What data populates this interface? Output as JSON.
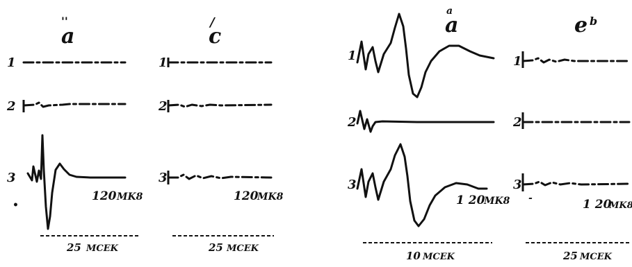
{
  "panels": [
    {
      "id": "a",
      "letter": "a",
      "traces": [
        {
          "label": "1"
        },
        {
          "label": "2"
        },
        {
          "label": "3"
        }
      ],
      "calibration": "120",
      "timebase": "25"
    },
    {
      "id": "b",
      "letter": "c",
      "traces": [
        {
          "label": "1"
        },
        {
          "label": "2"
        },
        {
          "label": "3"
        }
      ],
      "calibration": "120",
      "timebase": "25"
    },
    {
      "id": "c",
      "letter": "a",
      "traces": [
        {
          "label": "1"
        },
        {
          "label": "2"
        },
        {
          "label": "3"
        }
      ],
      "calibration": "1 20",
      "timebase": "10"
    },
    {
      "id": "d",
      "letter": "e",
      "traces": [
        {
          "label": "1"
        },
        {
          "label": "2"
        },
        {
          "label": "3"
        }
      ],
      "calibration": "1 20",
      "timebase": "25"
    }
  ]
}
